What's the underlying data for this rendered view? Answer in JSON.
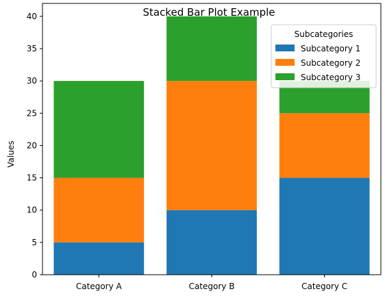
{
  "chart_data": {
    "type": "bar",
    "stacked": true,
    "title": "Stacked Bar Plot Example",
    "xlabel": "",
    "ylabel": "Values",
    "categories": [
      "Category A",
      "Category B",
      "Category C"
    ],
    "ylim": [
      0,
      42
    ],
    "yticks": [
      0,
      5,
      10,
      15,
      20,
      25,
      30,
      35,
      40
    ],
    "grid": false,
    "legend": {
      "title": "Subcategories",
      "placement": "top-right"
    },
    "series": [
      {
        "name": "Subcategory 1",
        "color": "#1f77b4",
        "values": [
          5,
          10,
          15
        ]
      },
      {
        "name": "Subcategory 2",
        "color": "#ff7f0e",
        "values": [
          10,
          20,
          10
        ]
      },
      {
        "name": "Subcategory 3",
        "color": "#2ca02c",
        "values": [
          15,
          10,
          5
        ]
      }
    ]
  }
}
